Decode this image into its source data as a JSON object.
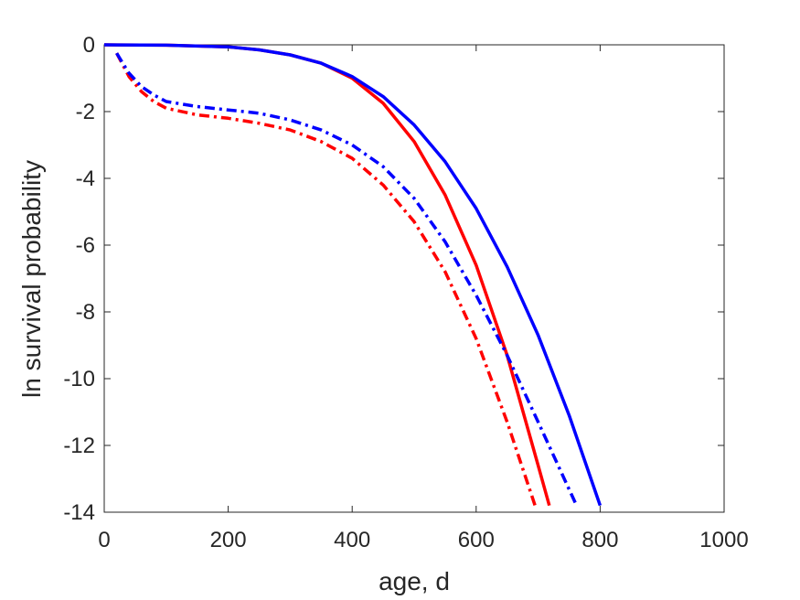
{
  "chart_data": {
    "type": "line",
    "title": "",
    "xlabel": "age, d",
    "ylabel": "ln survival probability",
    "xlim": [
      0,
      1000
    ],
    "ylim": [
      -14,
      0
    ],
    "xticks": [
      0,
      200,
      400,
      600,
      800,
      1000
    ],
    "xtick_labels": [
      "0",
      "200",
      "400",
      "600",
      "800",
      "1000"
    ],
    "yticks": [
      0,
      -2,
      -4,
      -6,
      -8,
      -10,
      -12,
      -14
    ],
    "ytick_labels": [
      "0",
      "-2",
      "-4",
      "-6",
      "-8",
      "-10",
      "-12",
      "-14"
    ],
    "grid": false,
    "legend": "none",
    "series": [
      {
        "color": "#ff0000",
        "style": "solid",
        "x": [
          0,
          100,
          200,
          250,
          300,
          350,
          400,
          450,
          500,
          550,
          600,
          650,
          700,
          718
        ],
        "y": [
          0,
          -0.01,
          -0.06,
          -0.15,
          -0.3,
          -0.55,
          -1.0,
          -1.75,
          -2.9,
          -4.5,
          -6.6,
          -9.3,
          -12.6,
          -13.8
        ]
      },
      {
        "color": "#0000ff",
        "style": "solid",
        "x": [
          0,
          100,
          200,
          250,
          300,
          350,
          400,
          450,
          500,
          550,
          600,
          650,
          700,
          750,
          800
        ],
        "y": [
          0,
          -0.01,
          -0.06,
          -0.15,
          -0.3,
          -0.55,
          -0.95,
          -1.55,
          -2.4,
          -3.5,
          -4.9,
          -6.65,
          -8.7,
          -11.1,
          -13.8
        ]
      },
      {
        "color": "#ff0000",
        "style": "dashdot",
        "x": [
          20,
          30,
          40,
          60,
          80,
          100,
          150,
          200,
          250,
          300,
          350,
          400,
          450,
          500,
          550,
          600,
          650,
          695
        ],
        "y": [
          -0.25,
          -0.6,
          -0.95,
          -1.4,
          -1.7,
          -1.9,
          -2.1,
          -2.2,
          -2.35,
          -2.55,
          -2.9,
          -3.4,
          -4.2,
          -5.3,
          -6.8,
          -8.8,
          -11.3,
          -13.8
        ]
      },
      {
        "color": "#0000ff",
        "style": "dashdot",
        "x": [
          20,
          30,
          40,
          60,
          80,
          100,
          150,
          200,
          250,
          300,
          350,
          400,
          450,
          500,
          550,
          600,
          650,
          700,
          762
        ],
        "y": [
          -0.25,
          -0.55,
          -0.85,
          -1.25,
          -1.5,
          -1.7,
          -1.85,
          -1.95,
          -2.05,
          -2.25,
          -2.55,
          -3.0,
          -3.65,
          -4.6,
          -5.9,
          -7.5,
          -9.3,
          -11.3,
          -13.8
        ]
      }
    ]
  }
}
